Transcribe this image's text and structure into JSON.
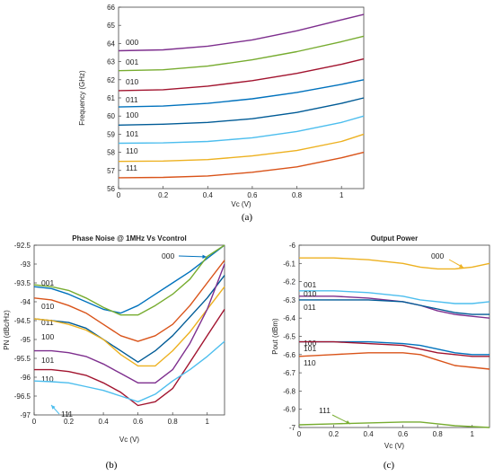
{
  "chart_data": [
    {
      "type": "line",
      "panel_label": "(a)",
      "title": "",
      "xlabel": "Vc (V)",
      "ylabel": "Frequency (GHz)",
      "xlim": [
        0,
        1.1
      ],
      "ylim": [
        56,
        66
      ],
      "xticks": [
        "0",
        "0.2",
        "0.4",
        "0.6",
        "0.8",
        "1"
      ],
      "yticks": [
        "56",
        "57",
        "58",
        "59",
        "60",
        "61",
        "62",
        "63",
        "64",
        "65",
        "66"
      ],
      "grid": false,
      "series": [
        {
          "name": "000",
          "color": "#7e2f8e",
          "x": [
            0,
            0.2,
            0.4,
            0.6,
            0.8,
            1.0,
            1.1
          ],
          "y": [
            63.6,
            63.65,
            63.85,
            64.2,
            64.7,
            65.3,
            65.6
          ]
        },
        {
          "name": "001",
          "color": "#77ac30",
          "x": [
            0,
            0.2,
            0.4,
            0.6,
            0.8,
            1.0,
            1.1
          ],
          "y": [
            62.5,
            62.55,
            62.75,
            63.1,
            63.55,
            64.1,
            64.4
          ]
        },
        {
          "name": "010",
          "color": "#a2142f",
          "x": [
            0,
            0.2,
            0.4,
            0.6,
            0.8,
            1.0,
            1.1
          ],
          "y": [
            61.4,
            61.45,
            61.65,
            61.95,
            62.35,
            62.85,
            63.15
          ]
        },
        {
          "name": "011",
          "color": "#0072bd",
          "x": [
            0,
            0.2,
            0.4,
            0.6,
            0.8,
            1.0,
            1.1
          ],
          "y": [
            60.5,
            60.55,
            60.7,
            60.95,
            61.3,
            61.75,
            62.0
          ]
        },
        {
          "name": "100",
          "color": "#005b96",
          "x": [
            0,
            0.2,
            0.4,
            0.6,
            0.8,
            1.0,
            1.1
          ],
          "y": [
            59.5,
            59.55,
            59.65,
            59.85,
            60.2,
            60.7,
            61.0
          ]
        },
        {
          "name": "101",
          "color": "#4dbeee",
          "x": [
            0,
            0.2,
            0.4,
            0.6,
            0.8,
            1.0,
            1.1
          ],
          "y": [
            58.5,
            58.52,
            58.6,
            58.8,
            59.15,
            59.65,
            60.0
          ]
        },
        {
          "name": "110",
          "color": "#edb120",
          "x": [
            0,
            0.2,
            0.4,
            0.6,
            0.8,
            1.0,
            1.1
          ],
          "y": [
            57.5,
            57.52,
            57.6,
            57.8,
            58.1,
            58.6,
            59.0
          ]
        },
        {
          "name": "111",
          "color": "#d95319",
          "x": [
            0,
            0.2,
            0.4,
            0.6,
            0.8,
            1.0,
            1.1
          ],
          "y": [
            56.6,
            56.62,
            56.7,
            56.9,
            57.2,
            57.7,
            58.0
          ]
        }
      ]
    },
    {
      "type": "line",
      "panel_label": "(b)",
      "title": "Phase Noise @ 1MHz Vs Vcontrol",
      "xlabel": "Vc (V)",
      "ylabel": "PN (dBc/Hz)",
      "xlim": [
        0,
        1.1
      ],
      "ylim": [
        -97,
        -92.5
      ],
      "xticks": [
        "0",
        "0.2",
        "0.4",
        "0.6",
        "0.8",
        "1"
      ],
      "yticks": [
        "-92.5",
        "-93",
        "-93.5",
        "-94",
        "-94.5",
        "-95",
        "-95.5",
        "-96",
        "-96.5",
        "-97"
      ],
      "grid": false,
      "series": [
        {
          "name": "000",
          "color": "#0072bd",
          "x": [
            0,
            0.1,
            0.2,
            0.3,
            0.4,
            0.5,
            0.6,
            0.7,
            0.8,
            0.9,
            1.0,
            1.1
          ],
          "y": [
            -93.6,
            -93.65,
            -93.8,
            -94.0,
            -94.2,
            -94.3,
            -94.1,
            -93.8,
            -93.5,
            -93.2,
            -92.85,
            -92.5
          ]
        },
        {
          "name": "001",
          "color": "#77ac30",
          "x": [
            0,
            0.1,
            0.2,
            0.3,
            0.4,
            0.5,
            0.6,
            0.7,
            0.8,
            0.9,
            1.0,
            1.1
          ],
          "y": [
            -93.55,
            -93.6,
            -93.7,
            -93.9,
            -94.15,
            -94.35,
            -94.35,
            -94.1,
            -93.8,
            -93.4,
            -92.8,
            -92.5
          ]
        },
        {
          "name": "010",
          "color": "#d95319",
          "x": [
            0,
            0.1,
            0.2,
            0.3,
            0.4,
            0.5,
            0.6,
            0.7,
            0.8,
            0.9,
            1.0,
            1.1
          ],
          "y": [
            -93.9,
            -93.95,
            -94.1,
            -94.3,
            -94.6,
            -94.9,
            -95.05,
            -94.9,
            -94.6,
            -94.1,
            -93.5,
            -92.9
          ]
        },
        {
          "name": "011",
          "color": "#005b96",
          "x": [
            0,
            0.1,
            0.2,
            0.3,
            0.4,
            0.5,
            0.6,
            0.7,
            0.8,
            0.9,
            1.0,
            1.1
          ],
          "y": [
            -94.45,
            -94.5,
            -94.55,
            -94.7,
            -95.0,
            -95.3,
            -95.6,
            -95.3,
            -94.9,
            -94.4,
            -93.9,
            -93.3
          ]
        },
        {
          "name": "100",
          "color": "#edb120",
          "x": [
            0,
            0.1,
            0.2,
            0.3,
            0.4,
            0.5,
            0.6,
            0.7,
            0.8,
            0.9,
            1.0,
            1.1
          ],
          "y": [
            -94.45,
            -94.5,
            -94.6,
            -94.75,
            -95.0,
            -95.4,
            -95.7,
            -95.7,
            -95.3,
            -94.8,
            -94.2,
            -93.6
          ]
        },
        {
          "name": "101",
          "color": "#7e2f8e",
          "x": [
            0,
            0.1,
            0.2,
            0.3,
            0.4,
            0.5,
            0.6,
            0.7,
            0.8,
            0.9,
            1.0,
            1.1
          ],
          "y": [
            -95.3,
            -95.3,
            -95.35,
            -95.45,
            -95.65,
            -95.9,
            -96.15,
            -96.15,
            -95.8,
            -95.1,
            -94.2,
            -93.0
          ]
        },
        {
          "name": "110",
          "color": "#a2142f",
          "x": [
            0,
            0.1,
            0.2,
            0.3,
            0.4,
            0.5,
            0.6,
            0.7,
            0.8,
            0.9,
            1.0,
            1.1
          ],
          "y": [
            -95.8,
            -95.8,
            -95.85,
            -95.95,
            -96.15,
            -96.4,
            -96.75,
            -96.65,
            -96.3,
            -95.6,
            -94.9,
            -94.2
          ]
        },
        {
          "name": "111",
          "color": "#4dbeee",
          "x": [
            0,
            0.1,
            0.2,
            0.3,
            0.4,
            0.5,
            0.6,
            0.7,
            0.8,
            0.9,
            1.0,
            1.1
          ],
          "y": [
            -96.1,
            -96.12,
            -96.15,
            -96.25,
            -96.35,
            -96.5,
            -96.65,
            -96.45,
            -96.1,
            -95.8,
            -95.45,
            -95.05
          ]
        }
      ]
    },
    {
      "type": "line",
      "panel_label": "(c)",
      "title": "Output Power",
      "xlabel": "Vc (V)",
      "ylabel": "Pout (dBm)",
      "xlim": [
        0,
        1.1
      ],
      "ylim": [
        -7,
        -6
      ],
      "xticks": [
        "0",
        "0.2",
        "0.4",
        "0.6",
        "0.8",
        "1"
      ],
      "yticks": [
        "-6",
        "-6.1",
        "-6.2",
        "-6.3",
        "-6.4",
        "-6.5",
        "-6.6",
        "-6.7",
        "-6.8",
        "-6.9",
        "-7"
      ],
      "grid": false,
      "series": [
        {
          "name": "000",
          "color": "#edb120",
          "x": [
            0,
            0.2,
            0.4,
            0.6,
            0.7,
            0.8,
            0.9,
            1.0,
            1.1
          ],
          "y": [
            -6.07,
            -6.07,
            -6.08,
            -6.1,
            -6.12,
            -6.13,
            -6.13,
            -6.12,
            -6.1
          ]
        },
        {
          "name": "001",
          "color": "#4dbeee",
          "x": [
            0,
            0.2,
            0.4,
            0.6,
            0.7,
            0.8,
            0.9,
            1.0,
            1.1
          ],
          "y": [
            -6.25,
            -6.25,
            -6.26,
            -6.28,
            -6.3,
            -6.31,
            -6.32,
            -6.32,
            -6.31
          ]
        },
        {
          "name": "010",
          "color": "#7e2f8e",
          "x": [
            0,
            0.2,
            0.4,
            0.6,
            0.7,
            0.8,
            0.9,
            1.0,
            1.1
          ],
          "y": [
            -6.28,
            -6.28,
            -6.29,
            -6.31,
            -6.33,
            -6.36,
            -6.38,
            -6.39,
            -6.4
          ]
        },
        {
          "name": "011",
          "color": "#005b96",
          "x": [
            0,
            0.2,
            0.4,
            0.6,
            0.7,
            0.8,
            0.9,
            1.0,
            1.1
          ],
          "y": [
            -6.3,
            -6.3,
            -6.3,
            -6.31,
            -6.33,
            -6.35,
            -6.37,
            -6.38,
            -6.38
          ]
        },
        {
          "name": "100",
          "color": "#0072bd",
          "x": [
            0,
            0.2,
            0.4,
            0.6,
            0.7,
            0.8,
            0.9,
            1.0,
            1.1
          ],
          "y": [
            -6.53,
            -6.53,
            -6.53,
            -6.54,
            -6.55,
            -6.57,
            -6.59,
            -6.6,
            -6.6
          ]
        },
        {
          "name": "101",
          "color": "#a2142f",
          "x": [
            0,
            0.2,
            0.4,
            0.6,
            0.7,
            0.8,
            0.9,
            1.0,
            1.1
          ],
          "y": [
            -6.53,
            -6.53,
            -6.54,
            -6.55,
            -6.57,
            -6.59,
            -6.6,
            -6.61,
            -6.61
          ]
        },
        {
          "name": "110",
          "color": "#d95319",
          "x": [
            0,
            0.2,
            0.4,
            0.6,
            0.7,
            0.8,
            0.9,
            1.0,
            1.1
          ],
          "y": [
            -6.61,
            -6.6,
            -6.59,
            -6.59,
            -6.6,
            -6.63,
            -6.66,
            -6.67,
            -6.68
          ]
        },
        {
          "name": "111",
          "color": "#77ac30",
          "x": [
            0,
            0.2,
            0.4,
            0.6,
            0.7,
            0.8,
            0.9,
            1.0,
            1.1
          ],
          "y": [
            -6.985,
            -6.98,
            -6.975,
            -6.97,
            -6.97,
            -6.98,
            -6.99,
            -6.995,
            -7.0
          ]
        }
      ]
    }
  ]
}
